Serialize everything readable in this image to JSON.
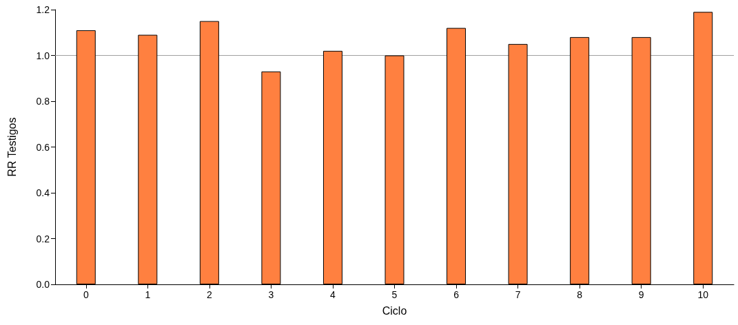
{
  "chart_data": {
    "type": "bar",
    "xlabel": "Ciclo",
    "ylabel": "RR Testigos",
    "categories": [
      "0",
      "1",
      "2",
      "3",
      "4",
      "5",
      "6",
      "7",
      "8",
      "9",
      "10"
    ],
    "values": [
      1.11,
      1.09,
      1.15,
      0.93,
      1.02,
      1.0,
      1.12,
      1.05,
      1.08,
      1.08,
      1.19
    ],
    "color": "#ff8040",
    "ylim": [
      0,
      1.2
    ],
    "yticks": [
      {
        "value": 0,
        "label": "0.0"
      },
      {
        "value": 0.2,
        "label": "0.2"
      },
      {
        "value": 0.4,
        "label": "0.4"
      },
      {
        "value": 0.6,
        "label": "0.6"
      },
      {
        "value": 0.8,
        "label": "0.8"
      },
      {
        "value": 1,
        "label": "1.0"
      },
      {
        "value": 1.2,
        "label": "1.2"
      }
    ],
    "ref_lines": [
      {
        "axis": "y",
        "value": 1,
        "label": null,
        "color": "#a0a0a0"
      }
    ],
    "grid": false
  }
}
